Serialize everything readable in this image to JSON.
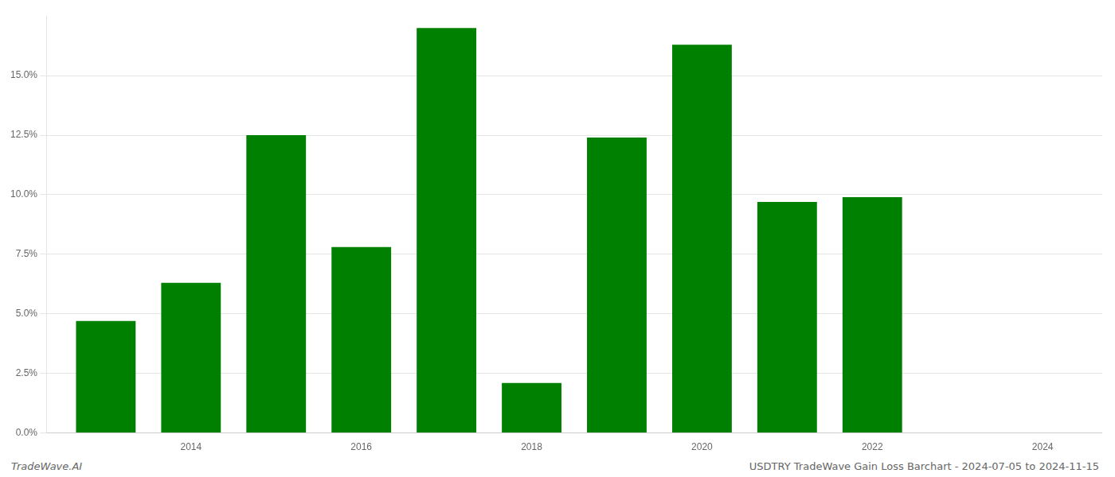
{
  "chart_data": {
    "type": "bar",
    "annotations": [
      "TradeWave.AI",
      "USDTRY TradeWave Gain Loss Barchart - 2024-07-05 to 2024-11-15"
    ],
    "x": [
      2013,
      2014,
      2015,
      2016,
      2017,
      2018,
      2019,
      2020,
      2021,
      2022,
      2023
    ],
    "values": [
      0.047,
      0.063,
      0.125,
      0.078,
      0.17,
      0.021,
      0.124,
      0.163,
      0.097,
      0.099,
      0.0
    ],
    "color": "#008000",
    "xlim": [
      2012.3,
      2024.7
    ],
    "xticks": [
      2014,
      2016,
      2018,
      2020,
      2022,
      2024
    ],
    "ylim": [
      0,
      0.175
    ],
    "yticks": [
      {
        "value": 0.0,
        "label": "0.0%"
      },
      {
        "value": 0.025,
        "label": "2.5%"
      },
      {
        "value": 0.05,
        "label": "5.0%"
      },
      {
        "value": 0.075,
        "label": "7.5%"
      },
      {
        "value": 0.1,
        "label": "10.0%"
      },
      {
        "value": 0.125,
        "label": "12.5%"
      },
      {
        "value": 0.15,
        "label": "15.0%"
      }
    ],
    "grid": "y"
  }
}
